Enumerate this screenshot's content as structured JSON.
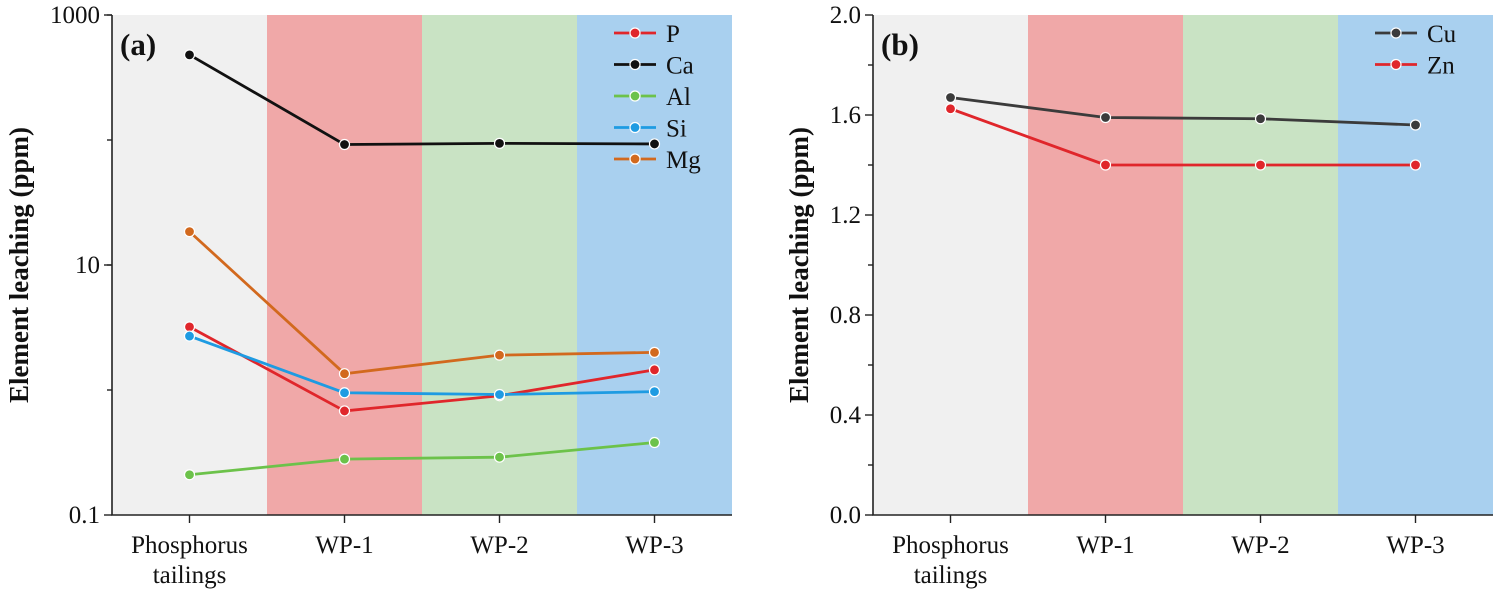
{
  "chart_data": [
    {
      "type": "line",
      "panel_label": "(a)",
      "ylabel": "Element leaching (ppm)",
      "yscale": "log",
      "ylim": [
        0.1,
        1000
      ],
      "yticks": [
        0.1,
        10,
        1000
      ],
      "ytick_labels": [
        "0.1",
        "10",
        "1000"
      ],
      "categories": [
        "Phosphorus\ntailings",
        "WP-1",
        "WP-2",
        "WP-3"
      ],
      "background_bands": [
        "#f0f0f0",
        "#f0a8a8",
        "#c9e3c4",
        "#a9d0ef"
      ],
      "legend_position": "top-right",
      "series": [
        {
          "name": "P",
          "color": "#e0262b",
          "values": [
            3.2,
            0.68,
            0.9,
            1.45
          ]
        },
        {
          "name": "Ca",
          "color": "#111111",
          "values": [
            480,
            92,
            94,
            93
          ]
        },
        {
          "name": "Al",
          "color": "#6cc24a",
          "values": [
            0.21,
            0.28,
            0.29,
            0.38
          ]
        },
        {
          "name": "Si",
          "color": "#1e9be2",
          "values": [
            2.7,
            0.95,
            0.92,
            0.97
          ]
        },
        {
          "name": "Mg",
          "color": "#d2691e",
          "values": [
            18.5,
            1.35,
            1.9,
            2.0
          ]
        }
      ]
    },
    {
      "type": "line",
      "panel_label": "(b)",
      "ylabel": "Element leaching (ppm)",
      "yscale": "linear",
      "ylim": [
        0.0,
        2.0
      ],
      "yticks": [
        0.0,
        0.4,
        0.8,
        1.2,
        1.6,
        2.0
      ],
      "ytick_labels": [
        "0.0",
        "0.4",
        "0.8",
        "1.2",
        "1.6",
        "2.0"
      ],
      "categories": [
        "Phosphorus\ntailings",
        "WP-1",
        "WP-2",
        "WP-3"
      ],
      "background_bands": [
        "#f0f0f0",
        "#f0a8a8",
        "#c9e3c4",
        "#a9d0ef"
      ],
      "legend_position": "top-right",
      "series": [
        {
          "name": "Cu",
          "color": "#3b3b3b",
          "values": [
            1.67,
            1.59,
            1.585,
            1.56
          ]
        },
        {
          "name": "Zn",
          "color": "#e0262b",
          "values": [
            1.625,
            1.4,
            1.4,
            1.4
          ]
        }
      ]
    }
  ]
}
